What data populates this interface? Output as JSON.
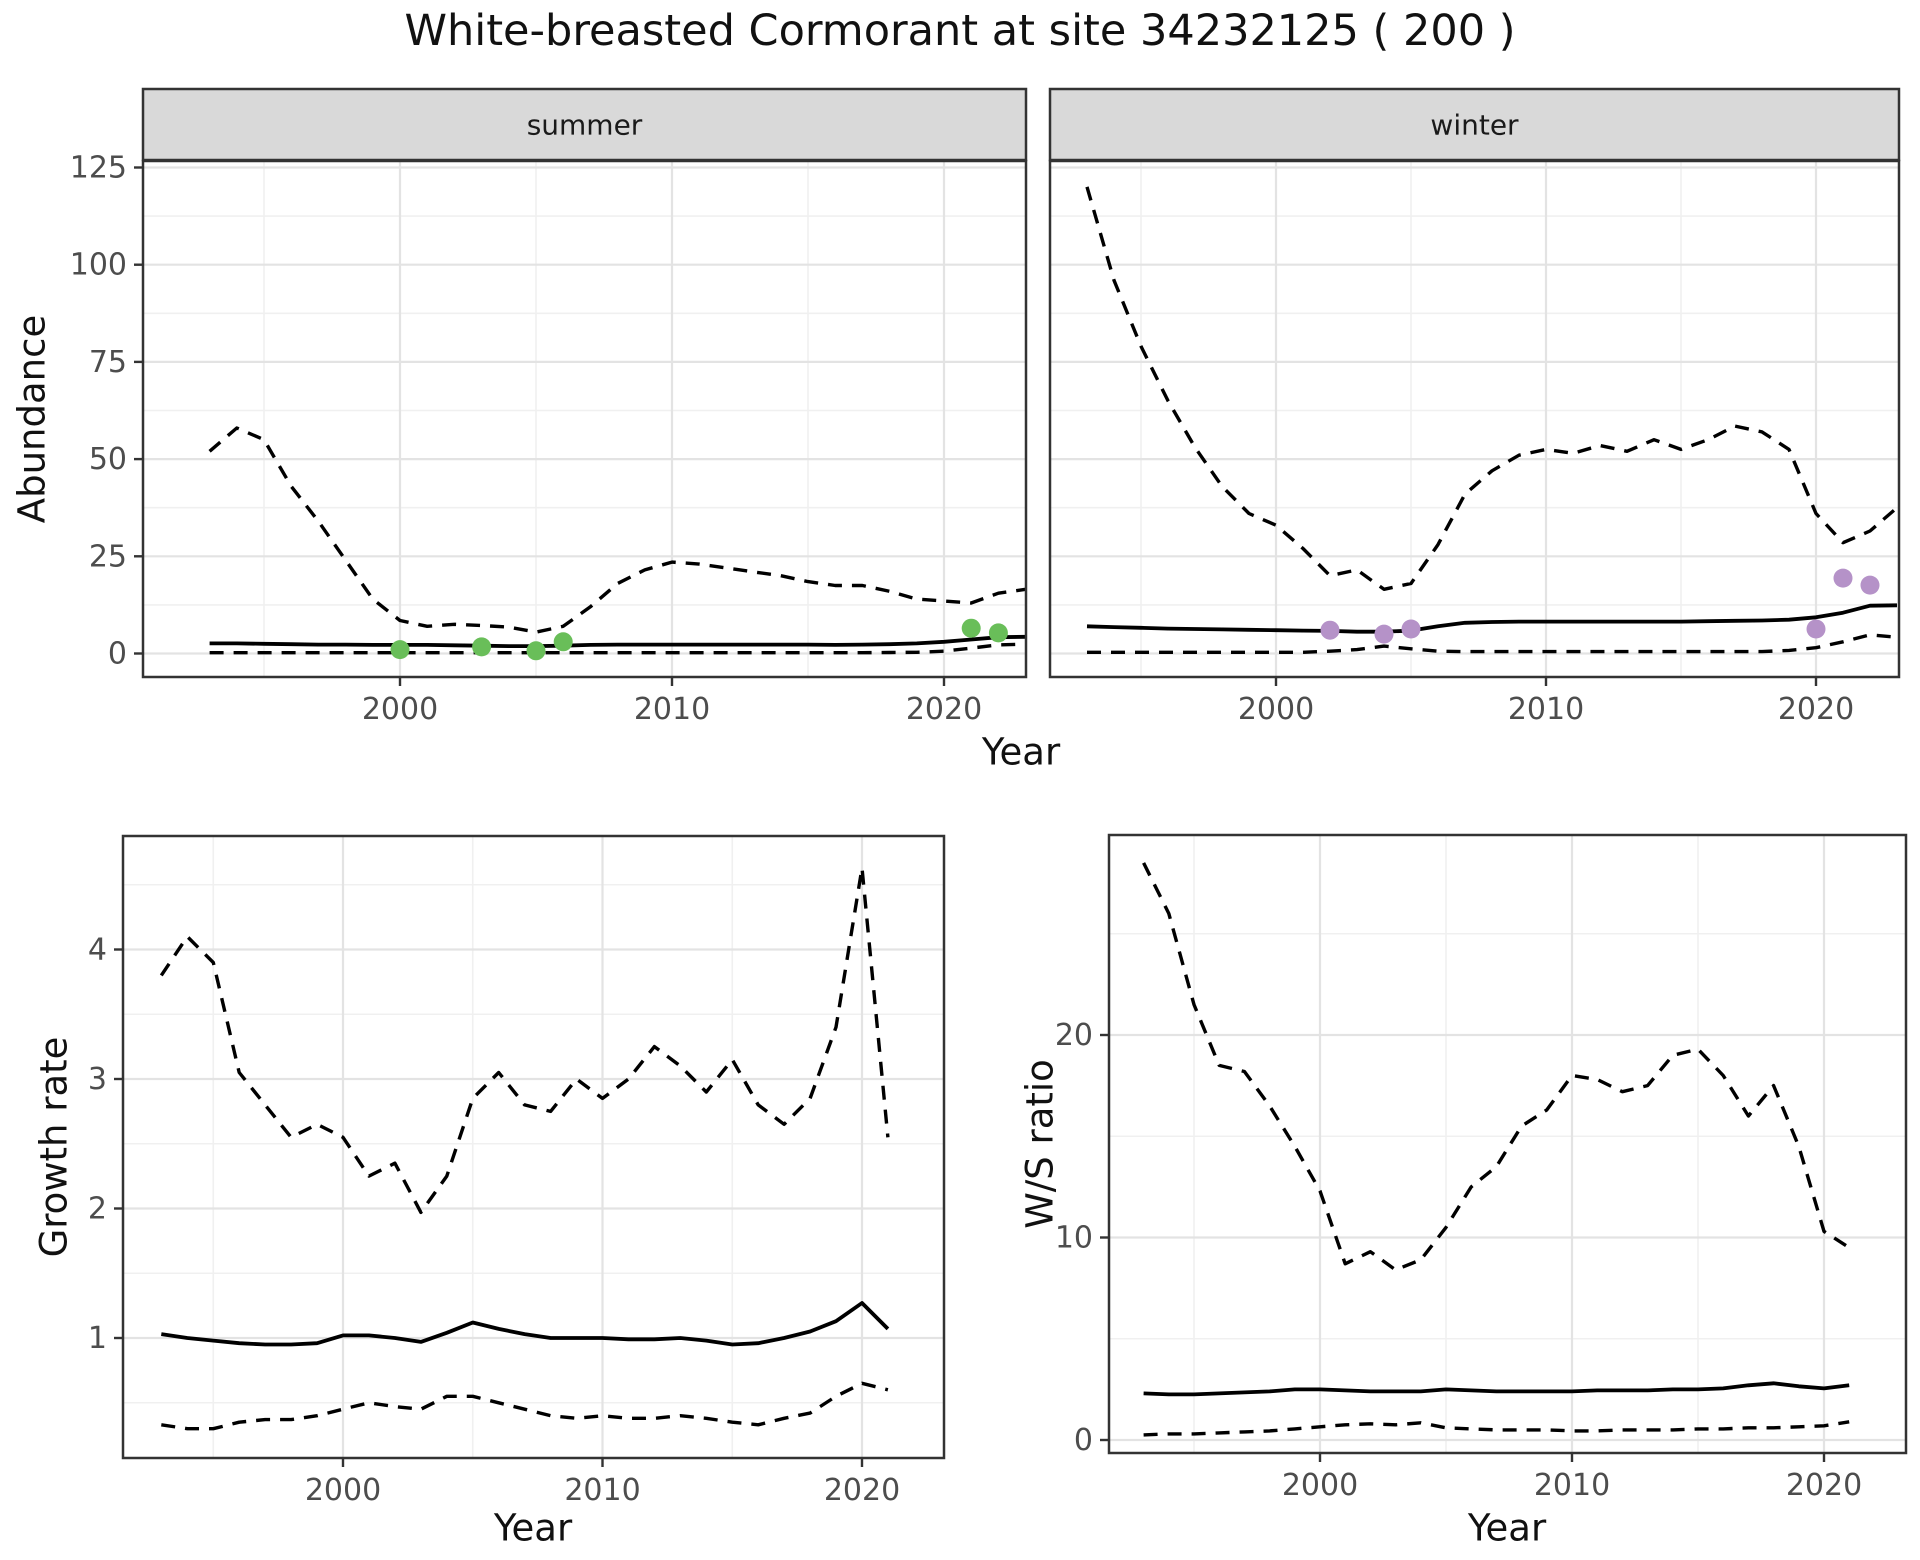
{
  "page": {
    "title": "White-breasted Cormorant at site 34232125 ( 200 )"
  },
  "colors": {
    "summer_point": "#69be59",
    "winter_point": "#b592c8",
    "line": "#000000",
    "strip_fill": "#d9d9d9",
    "strip_border": "#333333",
    "panel_border": "#333333",
    "grid_major": "#e3e3e3",
    "grid_minor": "#f0f0f0",
    "tick_label": "#4d4d4d"
  },
  "chart_data": [
    {
      "type": "line",
      "title": "",
      "ylabel": "Abundance",
      "xlabel": "Year",
      "legend": "none",
      "grid": true,
      "ylim": [
        -6,
        126.5
      ],
      "xlim": [
        1991.5,
        2023.2
      ],
      "yticks": [
        0,
        25,
        50,
        75,
        100,
        125
      ],
      "yminor": [
        12.5,
        37.5,
        62.5,
        87.5,
        112.5
      ],
      "xticks": [
        2000,
        2010,
        2020
      ],
      "xminor": [
        1995,
        2005,
        2015
      ],
      "facets": [
        {
          "label": "summer",
          "point_color": "#69be59",
          "series": [
            {
              "name": "upper_ci",
              "style": "dashed",
              "year_start": 1993,
              "values": [
                52,
                58,
                55,
                43,
                34,
                24,
                14,
                8.5,
                7,
                7.5,
                7.2,
                6.8,
                5.5,
                7,
                12,
                18,
                21.5,
                23.5,
                23,
                22,
                21,
                20,
                18.5,
                17.5,
                17.5,
                16,
                14,
                13.5,
                13,
                15.5,
                16.5
              ]
            },
            {
              "name": "median",
              "style": "solid",
              "year_start": 1993,
              "values": [
                2.6,
                2.6,
                2.5,
                2.4,
                2.3,
                2.3,
                2.2,
                2.2,
                2.2,
                2.1,
                2.0,
                1.9,
                1.9,
                2.0,
                2.2,
                2.3,
                2.3,
                2.3,
                2.3,
                2.3,
                2.3,
                2.3,
                2.3,
                2.2,
                2.3,
                2.4,
                2.6,
                3.0,
                3.6,
                4.2,
                4.3
              ]
            },
            {
              "name": "lower_ci",
              "style": "dashed",
              "year_start": 1993,
              "values": [
                0.2,
                0.2,
                0.2,
                0.2,
                0.2,
                0.2,
                0.2,
                0.2,
                0.2,
                0.2,
                0.2,
                0.2,
                0.2,
                0.2,
                0.2,
                0.2,
                0.2,
                0.2,
                0.2,
                0.2,
                0.2,
                0.2,
                0.2,
                0.2,
                0.2,
                0.25,
                0.3,
                0.6,
                1.4,
                2.2,
                2.4
              ]
            }
          ],
          "points": [
            [
              2000,
              1
            ],
            [
              2003,
              1.7
            ],
            [
              2005,
              0.7
            ],
            [
              2006,
              3
            ],
            [
              2021,
              6.5
            ],
            [
              2022,
              5.3
            ]
          ]
        },
        {
          "label": "winter",
          "point_color": "#b592c8",
          "series": [
            {
              "name": "upper_ci",
              "style": "dashed",
              "year_start": 1993,
              "values": [
                120,
                96,
                79,
                65,
                53,
                43,
                36,
                33,
                27,
                20,
                21.5,
                16.5,
                18,
                28,
                41,
                47,
                51,
                52.5,
                51.5,
                53.5,
                52,
                55,
                52.5,
                55,
                58.5,
                57,
                52.5,
                36,
                28.5,
                31.5,
                37.5
              ]
            },
            {
              "name": "median",
              "style": "solid",
              "year_start": 1993,
              "values": [
                7.0,
                6.8,
                6.6,
                6.4,
                6.3,
                6.2,
                6.1,
                6.0,
                5.9,
                5.8,
                5.6,
                5.6,
                5.9,
                7.0,
                7.9,
                8.1,
                8.2,
                8.2,
                8.2,
                8.2,
                8.2,
                8.2,
                8.2,
                8.3,
                8.4,
                8.5,
                8.7,
                9.3,
                10.5,
                12.3,
                12.4
              ]
            },
            {
              "name": "lower_ci",
              "style": "dashed",
              "year_start": 1993,
              "values": [
                0.3,
                0.3,
                0.3,
                0.3,
                0.3,
                0.3,
                0.3,
                0.3,
                0.3,
                0.6,
                1.0,
                1.9,
                1.2,
                0.6,
                0.5,
                0.5,
                0.5,
                0.5,
                0.5,
                0.5,
                0.5,
                0.5,
                0.5,
                0.5,
                0.5,
                0.5,
                0.8,
                1.5,
                3.0,
                4.8,
                4.2
              ]
            }
          ],
          "points": [
            [
              2002,
              6
            ],
            [
              2004,
              5
            ],
            [
              2005,
              6.3
            ],
            [
              2020,
              6.3
            ],
            [
              2021,
              19.4
            ],
            [
              2022,
              17.6
            ]
          ]
        }
      ]
    },
    {
      "type": "line",
      "title": "",
      "ylabel": "Growth rate",
      "xlabel": "Year",
      "legend": "none",
      "grid": true,
      "ylim": [
        0.07,
        4.88
      ],
      "xlim": [
        1991.5,
        2023.1
      ],
      "yticks": [
        1,
        2,
        3,
        4
      ],
      "yminor": [
        0.5,
        1.5,
        2.5,
        3.5,
        4.5
      ],
      "xticks": [
        2000,
        2010,
        2020
      ],
      "xminor": [
        1995,
        2005,
        2015
      ],
      "series": [
        {
          "name": "upper_ci",
          "style": "dashed",
          "year_start": 1993,
          "values": [
            3.8,
            4.1,
            3.9,
            3.05,
            2.8,
            2.55,
            2.65,
            2.55,
            2.25,
            2.35,
            1.97,
            2.25,
            2.85,
            3.05,
            2.8,
            2.75,
            3.0,
            2.85,
            3.0,
            3.25,
            3.1,
            2.9,
            3.15,
            2.8,
            2.65,
            2.85,
            3.4,
            4.63,
            2.55
          ]
        },
        {
          "name": "median",
          "style": "solid",
          "year_start": 1993,
          "values": [
            1.03,
            1.0,
            0.98,
            0.96,
            0.95,
            0.95,
            0.96,
            1.02,
            1.02,
            1.0,
            0.97,
            1.04,
            1.12,
            1.07,
            1.03,
            1.0,
            1.0,
            1.0,
            0.99,
            0.99,
            1.0,
            0.98,
            0.95,
            0.96,
            1.0,
            1.05,
            1.13,
            1.27,
            1.07
          ]
        },
        {
          "name": "lower_ci",
          "style": "dashed",
          "year_start": 1993,
          "values": [
            0.33,
            0.3,
            0.3,
            0.35,
            0.37,
            0.37,
            0.4,
            0.45,
            0.5,
            0.47,
            0.45,
            0.55,
            0.55,
            0.5,
            0.45,
            0.4,
            0.38,
            0.4,
            0.38,
            0.38,
            0.4,
            0.38,
            0.35,
            0.33,
            0.38,
            0.42,
            0.55,
            0.65,
            0.6
          ]
        }
      ],
      "points": []
    },
    {
      "type": "line",
      "title": "",
      "ylabel": "W/S ratio",
      "xlabel": "Year",
      "legend": "none",
      "grid": true,
      "ylim": [
        -0.64,
        29.9
      ],
      "xlim": [
        1991.6,
        2023.3
      ],
      "yticks": [
        0,
        10,
        20
      ],
      "yminor": [
        5,
        15,
        25
      ],
      "xticks": [
        2000,
        2010,
        2020
      ],
      "xminor": [
        1995,
        2005,
        2015
      ],
      "series": [
        {
          "name": "upper_ci",
          "style": "dashed",
          "year_start": 1993,
          "values": [
            28.5,
            26,
            21.5,
            18.5,
            18.2,
            16.5,
            14.5,
            12.3,
            8.7,
            9.3,
            8.4,
            8.9,
            10.5,
            12.5,
            13.5,
            15.5,
            16.3,
            18,
            17.8,
            17.2,
            17.5,
            19,
            19.3,
            18,
            16,
            17.5,
            14.5,
            10.3,
            9.5
          ]
        },
        {
          "name": "median",
          "style": "solid",
          "year_start": 1993,
          "values": [
            2.3,
            2.25,
            2.25,
            2.3,
            2.35,
            2.4,
            2.5,
            2.5,
            2.45,
            2.4,
            2.4,
            2.4,
            2.5,
            2.45,
            2.4,
            2.4,
            2.4,
            2.4,
            2.45,
            2.45,
            2.45,
            2.5,
            2.5,
            2.55,
            2.7,
            2.8,
            2.65,
            2.55,
            2.7
          ]
        },
        {
          "name": "lower_ci",
          "style": "dashed",
          "year_start": 1993,
          "values": [
            0.25,
            0.3,
            0.3,
            0.35,
            0.4,
            0.45,
            0.55,
            0.65,
            0.75,
            0.8,
            0.75,
            0.85,
            0.6,
            0.55,
            0.5,
            0.5,
            0.5,
            0.45,
            0.45,
            0.5,
            0.5,
            0.5,
            0.55,
            0.55,
            0.6,
            0.6,
            0.65,
            0.7,
            0.9
          ]
        }
      ],
      "points": []
    }
  ]
}
